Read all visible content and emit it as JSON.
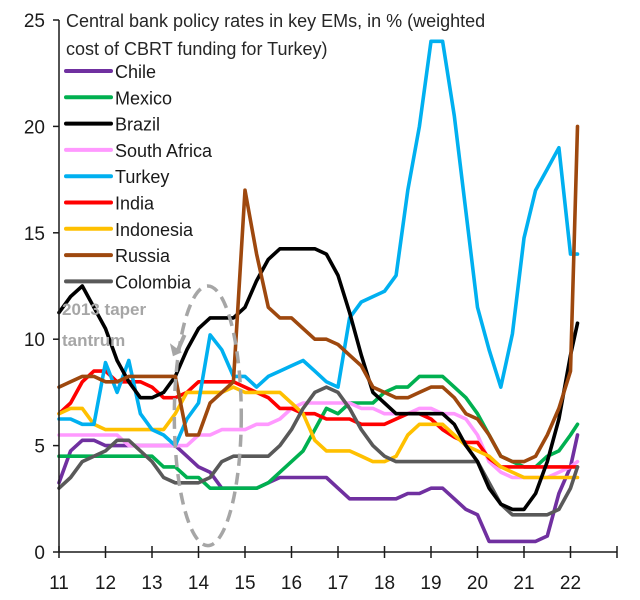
{
  "chart_data": {
    "type": "line",
    "title": "Central bank policy rates in key EMs, in % (weighted cost of CBRT funding for Turkey)",
    "title_lines": [
      "Central bank policy rates in key EMs, in % (weighted",
      "cost of CBRT funding for Turkey)"
    ],
    "xlabel": "",
    "ylabel": "",
    "xlim": [
      11,
      23
    ],
    "ylim": [
      0,
      25
    ],
    "x_ticks": [
      11,
      12,
      13,
      14,
      15,
      16,
      17,
      18,
      19,
      20,
      21,
      22
    ],
    "x_tick_labels": [
      "11",
      "12",
      "13",
      "14",
      "15",
      "16",
      "17",
      "18",
      "19",
      "20",
      "21",
      "22"
    ],
    "y_ticks": [
      0,
      5,
      10,
      15,
      20,
      25
    ],
    "y_tick_labels": [
      "0",
      "5",
      "10",
      "15",
      "20",
      "25"
    ],
    "grid": false,
    "legend_position": "top-left",
    "annotation": {
      "lines": [
        "2013 taper",
        "tantrum"
      ],
      "ellipse_center": [
        14.2,
        6.4
      ],
      "ellipse_rx_years": 0.72,
      "ellipse_ry_units": 6.1,
      "arrow_from": [
        13.7,
        10.2
      ],
      "arrow_to": [
        13.45,
        9.2
      ]
    },
    "x": [
      11.0,
      11.25,
      11.5,
      11.75,
      12.0,
      12.25,
      12.5,
      12.75,
      13.0,
      13.25,
      13.5,
      13.75,
      14.0,
      14.25,
      14.5,
      14.75,
      15.0,
      15.25,
      15.5,
      15.75,
      16.0,
      16.25,
      16.5,
      16.75,
      17.0,
      17.25,
      17.5,
      17.75,
      18.0,
      18.25,
      18.5,
      18.75,
      19.0,
      19.25,
      19.5,
      19.75,
      20.0,
      20.25,
      20.5,
      20.75,
      21.0,
      21.25,
      21.5,
      21.75,
      22.0,
      22.15
    ],
    "series": [
      {
        "name": "Chile",
        "color": "#7030a0",
        "values": [
          3.25,
          4.75,
          5.25,
          5.25,
          5.0,
          5.0,
          5.0,
          5.0,
          5.0,
          5.0,
          5.0,
          4.5,
          4.0,
          3.75,
          3.0,
          3.0,
          3.0,
          3.0,
          3.25,
          3.5,
          3.5,
          3.5,
          3.5,
          3.5,
          3.0,
          2.5,
          2.5,
          2.5,
          2.5,
          2.5,
          2.75,
          2.75,
          3.0,
          3.0,
          2.5,
          2.0,
          1.75,
          0.5,
          0.5,
          0.5,
          0.5,
          0.5,
          0.75,
          2.75,
          4.0,
          5.5
        ]
      },
      {
        "name": "Mexico",
        "color": "#00b050",
        "values": [
          4.5,
          4.5,
          4.5,
          4.5,
          4.5,
          4.5,
          4.5,
          4.5,
          4.5,
          4.0,
          4.0,
          3.5,
          3.5,
          3.0,
          3.0,
          3.0,
          3.0,
          3.0,
          3.25,
          3.75,
          4.25,
          4.75,
          5.75,
          6.75,
          6.5,
          7.0,
          7.0,
          7.0,
          7.5,
          7.75,
          7.75,
          8.25,
          8.25,
          8.25,
          7.75,
          7.25,
          6.5,
          5.5,
          4.5,
          4.25,
          4.0,
          4.0,
          4.5,
          4.75,
          5.5,
          6.0
        ]
      },
      {
        "name": "Brazil",
        "color": "#000000",
        "values": [
          11.25,
          12.0,
          12.5,
          11.5,
          10.5,
          9.0,
          8.0,
          7.25,
          7.25,
          7.5,
          8.25,
          9.5,
          10.5,
          11.0,
          11.0,
          11.0,
          11.5,
          12.75,
          13.75,
          14.25,
          14.25,
          14.25,
          14.25,
          14.0,
          13.0,
          11.25,
          9.25,
          7.5,
          7.0,
          6.5,
          6.5,
          6.5,
          6.5,
          6.5,
          6.0,
          5.0,
          4.25,
          3.0,
          2.25,
          2.0,
          2.0,
          2.75,
          4.25,
          6.25,
          9.25,
          10.75
        ]
      },
      {
        "name": "South Africa",
        "color": "#ff99ff",
        "values": [
          5.5,
          5.5,
          5.5,
          5.5,
          5.5,
          5.5,
          5.0,
          5.0,
          5.0,
          5.0,
          5.0,
          5.0,
          5.5,
          5.5,
          5.75,
          5.75,
          5.75,
          6.0,
          6.0,
          6.25,
          6.75,
          7.0,
          7.0,
          7.0,
          7.0,
          7.0,
          6.75,
          6.75,
          6.5,
          6.5,
          6.5,
          6.75,
          6.75,
          6.5,
          6.5,
          6.25,
          5.5,
          4.25,
          3.75,
          3.5,
          3.5,
          3.5,
          3.5,
          3.75,
          4.0,
          4.25
        ]
      },
      {
        "name": "Turkey",
        "color": "#00b0f0",
        "values": [
          6.25,
          6.25,
          6.0,
          6.0,
          8.9,
          7.5,
          9.0,
          6.5,
          5.75,
          5.5,
          5.0,
          6.25,
          7.0,
          10.2,
          9.5,
          8.25,
          8.25,
          7.75,
          8.25,
          8.5,
          8.75,
          9.0,
          8.5,
          8.0,
          7.75,
          11.0,
          11.75,
          12.0,
          12.25,
          13.0,
          17.0,
          20.0,
          24.0,
          24.0,
          20.5,
          16.0,
          11.5,
          9.5,
          7.75,
          10.25,
          14.75,
          17.0,
          18.0,
          19.0,
          14.0,
          14.0
        ]
      },
      {
        "name": "India",
        "color": "#ff0000",
        "values": [
          6.5,
          7.0,
          8.0,
          8.5,
          8.5,
          8.0,
          8.0,
          8.0,
          7.75,
          7.25,
          7.25,
          7.5,
          8.0,
          8.0,
          8.0,
          8.0,
          7.75,
          7.5,
          7.25,
          6.75,
          6.75,
          6.5,
          6.5,
          6.25,
          6.25,
          6.25,
          6.0,
          6.0,
          6.0,
          6.25,
          6.5,
          6.5,
          6.25,
          5.75,
          5.4,
          5.15,
          5.15,
          4.4,
          4.0,
          4.0,
          4.0,
          4.0,
          4.0,
          4.0,
          4.0,
          4.0
        ]
      },
      {
        "name": "Indonesia",
        "color": "#ffc000",
        "values": [
          6.5,
          6.75,
          6.75,
          6.0,
          5.75,
          5.75,
          5.75,
          5.75,
          5.75,
          5.75,
          6.5,
          7.5,
          7.5,
          7.5,
          7.5,
          7.75,
          7.5,
          7.5,
          7.5,
          7.5,
          7.0,
          6.5,
          5.25,
          4.75,
          4.75,
          4.75,
          4.5,
          4.25,
          4.25,
          4.5,
          5.5,
          6.0,
          6.0,
          6.0,
          5.5,
          5.0,
          4.75,
          4.5,
          4.0,
          3.75,
          3.5,
          3.5,
          3.5,
          3.5,
          3.5,
          3.5
        ]
      },
      {
        "name": "Russia",
        "color": "#9e480e",
        "values": [
          7.75,
          8.0,
          8.25,
          8.25,
          8.0,
          8.0,
          8.25,
          8.25,
          8.25,
          8.25,
          8.25,
          5.5,
          5.5,
          7.0,
          7.5,
          8.0,
          17.0,
          14.0,
          11.5,
          11.0,
          11.0,
          10.5,
          10.0,
          10.0,
          9.75,
          9.25,
          8.75,
          7.75,
          7.5,
          7.25,
          7.25,
          7.5,
          7.75,
          7.75,
          7.25,
          6.5,
          6.25,
          5.5,
          4.5,
          4.25,
          4.25,
          4.5,
          5.5,
          6.75,
          8.5,
          20.0
        ]
      },
      {
        "name": "Colombia",
        "color": "#595959",
        "values": [
          3.0,
          3.5,
          4.25,
          4.5,
          4.75,
          5.25,
          5.25,
          4.75,
          4.25,
          3.5,
          3.25,
          3.25,
          3.25,
          3.5,
          4.25,
          4.5,
          4.5,
          4.5,
          4.5,
          5.0,
          5.75,
          6.75,
          7.5,
          7.75,
          7.5,
          6.75,
          5.75,
          5.0,
          4.5,
          4.25,
          4.25,
          4.25,
          4.25,
          4.25,
          4.25,
          4.25,
          4.25,
          3.25,
          2.25,
          1.75,
          1.75,
          1.75,
          1.75,
          2.0,
          3.0,
          4.0
        ]
      }
    ]
  }
}
